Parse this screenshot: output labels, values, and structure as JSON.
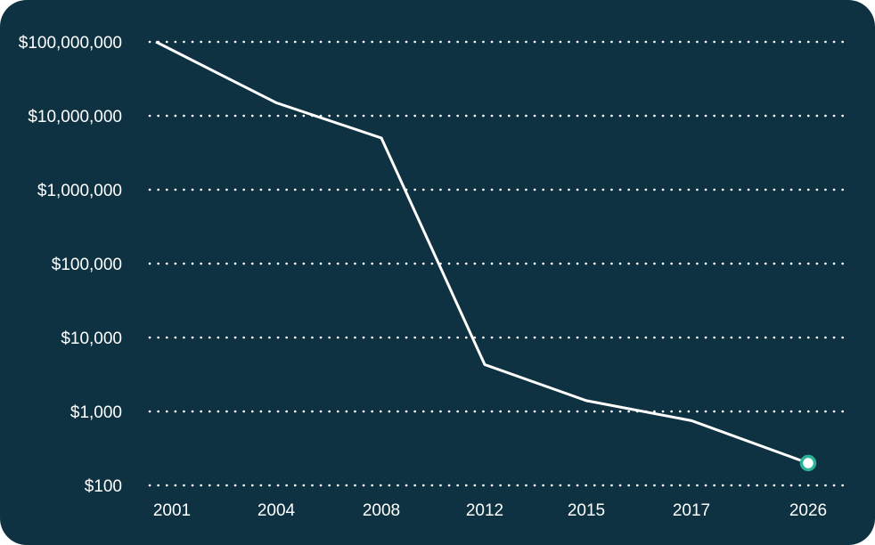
{
  "chart_data": {
    "type": "line",
    "title": "",
    "xlabel": "",
    "ylabel": "",
    "y_scale": "log",
    "ylim": [
      100,
      100000000
    ],
    "grid": true,
    "x": [
      "2001",
      "2004",
      "2008",
      "2012",
      "2015",
      "2017",
      "2026"
    ],
    "series": [
      {
        "values": [
          100000000,
          15000000,
          5000000,
          4300,
          1400,
          750,
          200
        ]
      }
    ],
    "y_ticks": [
      {
        "value": 100000000,
        "label": "$100,000,000"
      },
      {
        "value": 10000000,
        "label": "$10,000,000"
      },
      {
        "value": 1000000,
        "label": "$1,000,000"
      },
      {
        "value": 100000,
        "label": "$100,000"
      },
      {
        "value": 10000,
        "label": "$10,000"
      },
      {
        "value": 1000,
        "label": "$1,000"
      },
      {
        "value": 100,
        "label": "$100"
      }
    ],
    "x_ticks": [
      "2001",
      "2004",
      "2008",
      "2012",
      "2015",
      "2017",
      "2026"
    ],
    "colors": {
      "background": "#0e3241",
      "line": "#ffffff",
      "grid": "#ffffff",
      "marker_fill": "#ffffff",
      "marker_stroke": "#2bb39a"
    },
    "end_marker": true
  }
}
